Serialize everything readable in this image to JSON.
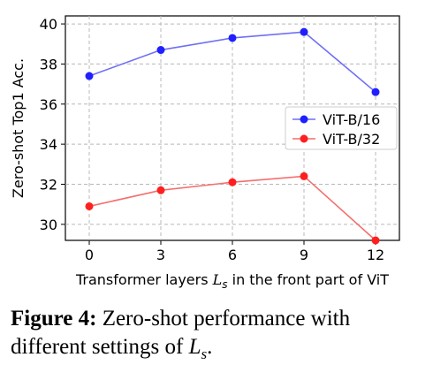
{
  "chart_data": {
    "type": "line",
    "x": [
      0,
      3,
      6,
      9,
      12
    ],
    "xticks": [
      "0",
      "3",
      "6",
      "9",
      "12"
    ],
    "yticks": [
      "30",
      "32",
      "34",
      "36",
      "38",
      "40"
    ],
    "xlim": [
      -1.0,
      13.0
    ],
    "ylim": [
      29.2,
      40.4
    ],
    "grid": true,
    "legend_placement": "center-right",
    "xlabel_prefix": "Transformer layers ",
    "xlabel_var": "L",
    "xlabel_sub": "s",
    "xlabel_suffix": " in the front part of ViT",
    "ylabel": "Zero-shot  Top1  Acc.",
    "series": [
      {
        "name": "ViT-B/16",
        "color": "#1f1fff",
        "line_color": "#6f6ff4",
        "values": [
          37.4,
          38.7,
          39.3,
          39.6,
          36.6
        ]
      },
      {
        "name": "ViT-B/32",
        "color": "#ff1f1f",
        "line_color": "#f46f6f",
        "values": [
          30.9,
          31.7,
          32.1,
          32.4,
          29.2
        ]
      }
    ]
  },
  "caption": {
    "label": "Figure 4:",
    "text_line1": " Zero-shot performance with",
    "text_line2": "different settings of ",
    "var": "L",
    "sub": "s",
    "end": "."
  }
}
